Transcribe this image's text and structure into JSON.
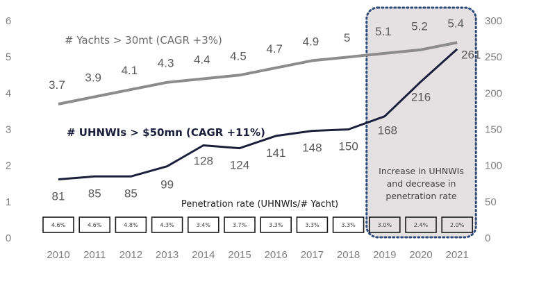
{
  "chart_data": {
    "type": "line",
    "categories": [
      "2010",
      "2011",
      "2012",
      "2013",
      "2014",
      "2015",
      "2016",
      "2017",
      "2018",
      "2019",
      "2020",
      "2021"
    ],
    "left_axis": {
      "ticks": [
        "0",
        "1",
        "2",
        "3",
        "4",
        "5",
        "6"
      ],
      "ylim": [
        0,
        6
      ]
    },
    "right_axis": {
      "ticks": [
        "0",
        "50",
        "100",
        "150",
        "200",
        "250",
        "300"
      ],
      "ylim": [
        0,
        300
      ]
    },
    "series": [
      {
        "name": "# Yachts  > 30mt (CAGR +3%)",
        "axis": "left",
        "color": "#8c8c8c",
        "values": [
          3.7,
          3.9,
          4.1,
          4.3,
          4.4,
          4.5,
          4.7,
          4.9,
          5.0,
          5.1,
          5.2,
          5.4
        ],
        "labels": [
          "3.7",
          "3.9",
          "4.1",
          "4.3",
          "4.4",
          "4.5",
          "4.7",
          "4.9",
          "5",
          "5.1",
          "5.2",
          "5.4"
        ]
      },
      {
        "name": "# UHNWIs > $50mn (CAGR +11%)",
        "axis": "right",
        "color": "#1b1f3b",
        "values": [
          81,
          85,
          85,
          99,
          128,
          124,
          141,
          148,
          150,
          168,
          216,
          261
        ],
        "labels": [
          "81",
          "85",
          "85",
          "99",
          "128",
          "124",
          "141",
          "148",
          "150",
          "168",
          "216",
          "261"
        ]
      }
    ],
    "penetration": {
      "title": "Penetration rate (UHNWIs/# Yacht)",
      "values": [
        "4.6%",
        "4.6%",
        "4.8%",
        "4.3%",
        "3.4%",
        "3.7%",
        "3.3%",
        "3.3%",
        "3.3%",
        "3.0%",
        "2.4%",
        "2.0%"
      ]
    },
    "callout": {
      "lines": [
        "Increase in UHNWIs",
        "and decrease in",
        "penetration rate"
      ],
      "highlight_from": "2019",
      "highlight_to": "2021",
      "border_color": "#2e4a7a",
      "fill_color": "#e5e1e2"
    }
  }
}
